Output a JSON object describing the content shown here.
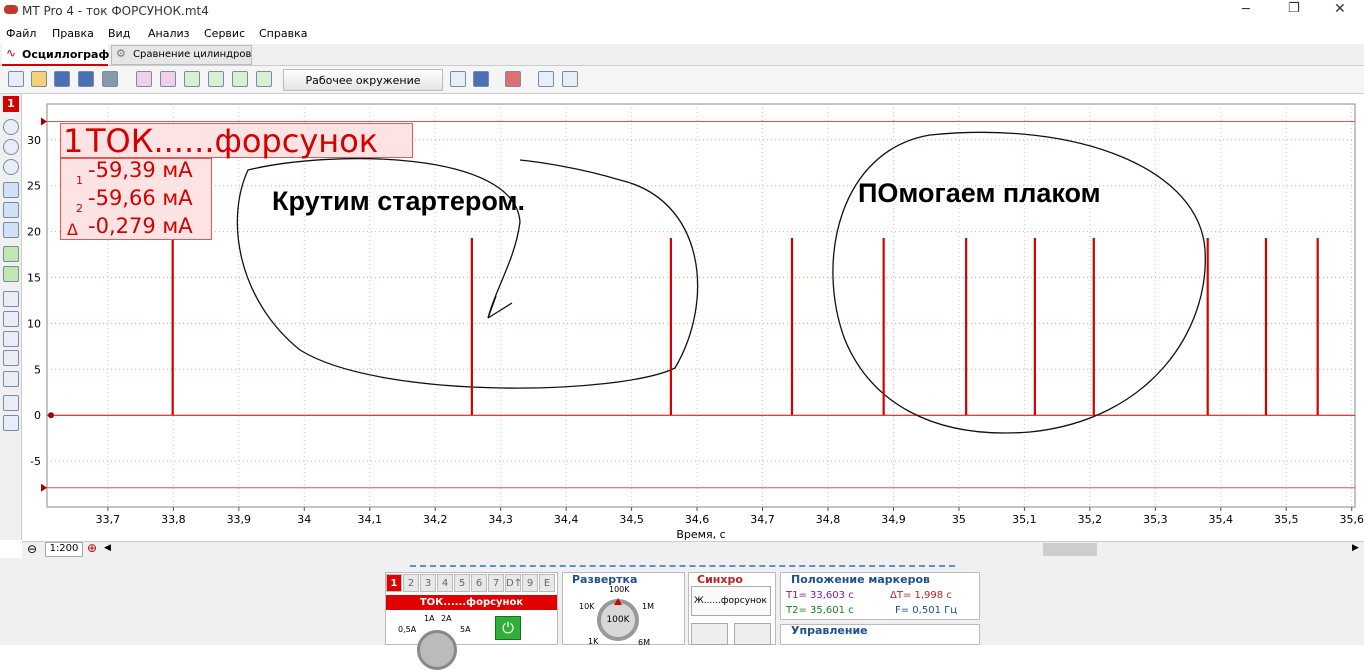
{
  "window": {
    "title": "MT Pro 4 - ток ФОРСУНОК.mt4"
  },
  "menu": [
    "Файл",
    "Правка",
    "Вид",
    "Анализ",
    "Сервис",
    "Справка"
  ],
  "tabs": [
    "Осциллограф",
    "Сравнение цилиндров"
  ],
  "toolbar": {
    "environment": "Рабочее окружение"
  },
  "channel_button": "1",
  "chart_data": {
    "type": "pulse",
    "x": [
      33.799,
      34.256,
      34.56,
      34.745,
      34.885,
      35.011,
      35.116,
      35.206,
      35.38,
      35.469,
      35.548
    ],
    "values": [
      19.3,
      19.3,
      19.3,
      19.3,
      19.3,
      19.3,
      19.3,
      19.3,
      19.3,
      19.3,
      19.3
    ],
    "color": "#d40000",
    "xlim": [
      33.607,
      35.605
    ],
    "ylim": [
      -10,
      33.9
    ],
    "xticks": [
      {
        "value": 33.7,
        "label": "33,7"
      },
      {
        "value": 33.8,
        "label": "33,8"
      },
      {
        "value": 33.9,
        "label": "33,9"
      },
      34,
      {
        "value": 34.1,
        "label": "34,1"
      },
      {
        "value": 34.2,
        "label": "34,2"
      },
      {
        "value": 34.3,
        "label": "34,3"
      },
      {
        "value": 34.4,
        "label": "34,4"
      },
      {
        "value": 34.5,
        "label": "34,5"
      },
      {
        "value": 34.6,
        "label": "34,6"
      },
      {
        "value": 34.7,
        "label": "34,7"
      },
      {
        "value": 34.8,
        "label": "34,8"
      },
      {
        "value": 34.9,
        "label": "34,9"
      },
      35,
      {
        "value": 35.1,
        "label": "35,1"
      },
      {
        "value": 35.2,
        "label": "35,2"
      },
      {
        "value": 35.3,
        "label": "35,3"
      },
      {
        "value": 35.4,
        "label": "35,4"
      },
      {
        "value": 35.5,
        "label": "35,5"
      },
      {
        "value": 35.6,
        "label": "35,6"
      }
    ],
    "yticks": [
      -5,
      0,
      5,
      10,
      15,
      20,
      25,
      30
    ],
    "x_label": "Время, с",
    "grid": true,
    "cursor_levels": [
      32,
      -7.9
    ],
    "annotations": [
      "Крутим стартером.",
      "ПОмогаем плаком"
    ],
    "channel_label": {
      "number": "1",
      "name": "ТОК......форсунок",
      "readings": [
        {
          "mark": "1",
          "text": "-59,39 мА"
        },
        {
          "mark": "2",
          "text": "-59,66 мА"
        },
        {
          "mark": "Δ",
          "text": "-0,279 мА"
        }
      ]
    }
  },
  "zoom": "1:200",
  "bottom": {
    "channel_tabs": [
      "1",
      "2",
      "3",
      "4",
      "5",
      "6",
      "7",
      "D↑",
      "9",
      "E"
    ],
    "channel_name": "ТОК......форсунок",
    "amp_labels": [
      "0,5A",
      "1A",
      "2A",
      "5A"
    ],
    "sweep": {
      "title": "Развертка",
      "labels": [
        "100K",
        "10K",
        "1M",
        "1K",
        "6M"
      ],
      "value": "100K"
    },
    "sync": {
      "title": "Синхро",
      "source": "Ж......форсунок"
    },
    "markers": {
      "title": "Положение маркеров",
      "t1": "T1= 33,603 с",
      "t2": "T2= 35,601 с",
      "dt": "ΔT= 1,998 с",
      "f": "F= 0,501 Гц"
    },
    "control": "Управление"
  }
}
